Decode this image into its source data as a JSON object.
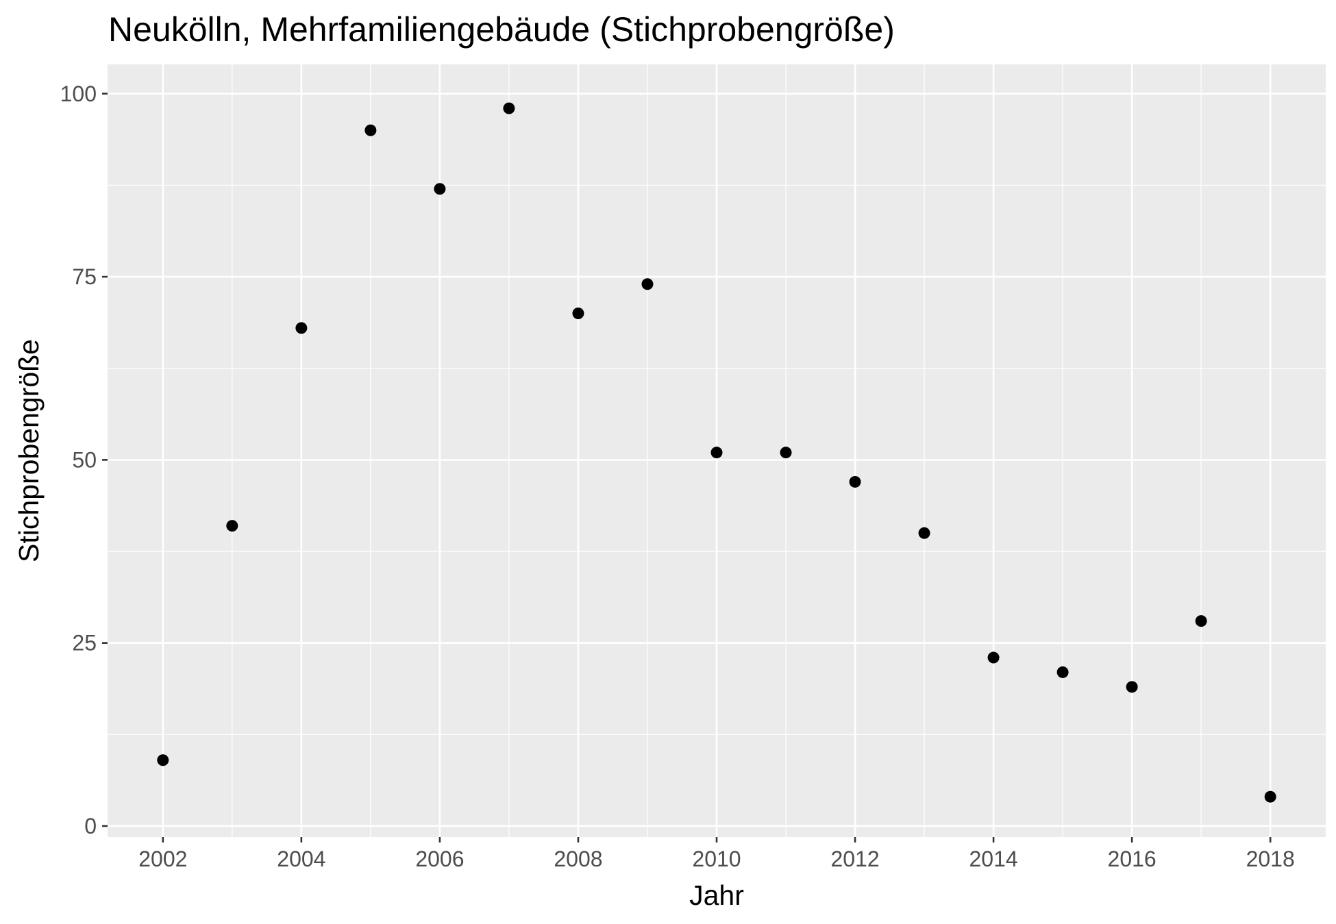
{
  "chart_data": {
    "type": "scatter",
    "title": "Neukölln, Mehrfamiliengebäude (Stichprobengröße)",
    "xlabel": "Jahr",
    "ylabel": "Stichprobengröße",
    "x_ticks": [
      "2002",
      "2004",
      "2006",
      "2008",
      "2010",
      "2012",
      "2014",
      "2016",
      "2018"
    ],
    "y_ticks": [
      "0",
      "25",
      "50",
      "75",
      "100"
    ],
    "xlim": [
      2001.2,
      2018.8
    ],
    "ylim": [
      -1.5,
      104
    ],
    "grid": true,
    "panel_color": "#ebebeb",
    "point_color": "#000000",
    "points": [
      {
        "x": 2002,
        "y": 9
      },
      {
        "x": 2003,
        "y": 41
      },
      {
        "x": 2004,
        "y": 68
      },
      {
        "x": 2005,
        "y": 95
      },
      {
        "x": 2006,
        "y": 87
      },
      {
        "x": 2007,
        "y": 98
      },
      {
        "x": 2008,
        "y": 70
      },
      {
        "x": 2009,
        "y": 74
      },
      {
        "x": 2010,
        "y": 51
      },
      {
        "x": 2011,
        "y": 51
      },
      {
        "x": 2012,
        "y": 47
      },
      {
        "x": 2013,
        "y": 40
      },
      {
        "x": 2014,
        "y": 23
      },
      {
        "x": 2015,
        "y": 21
      },
      {
        "x": 2016,
        "y": 19
      },
      {
        "x": 2017,
        "y": 28
      },
      {
        "x": 2018,
        "y": 4
      }
    ]
  }
}
